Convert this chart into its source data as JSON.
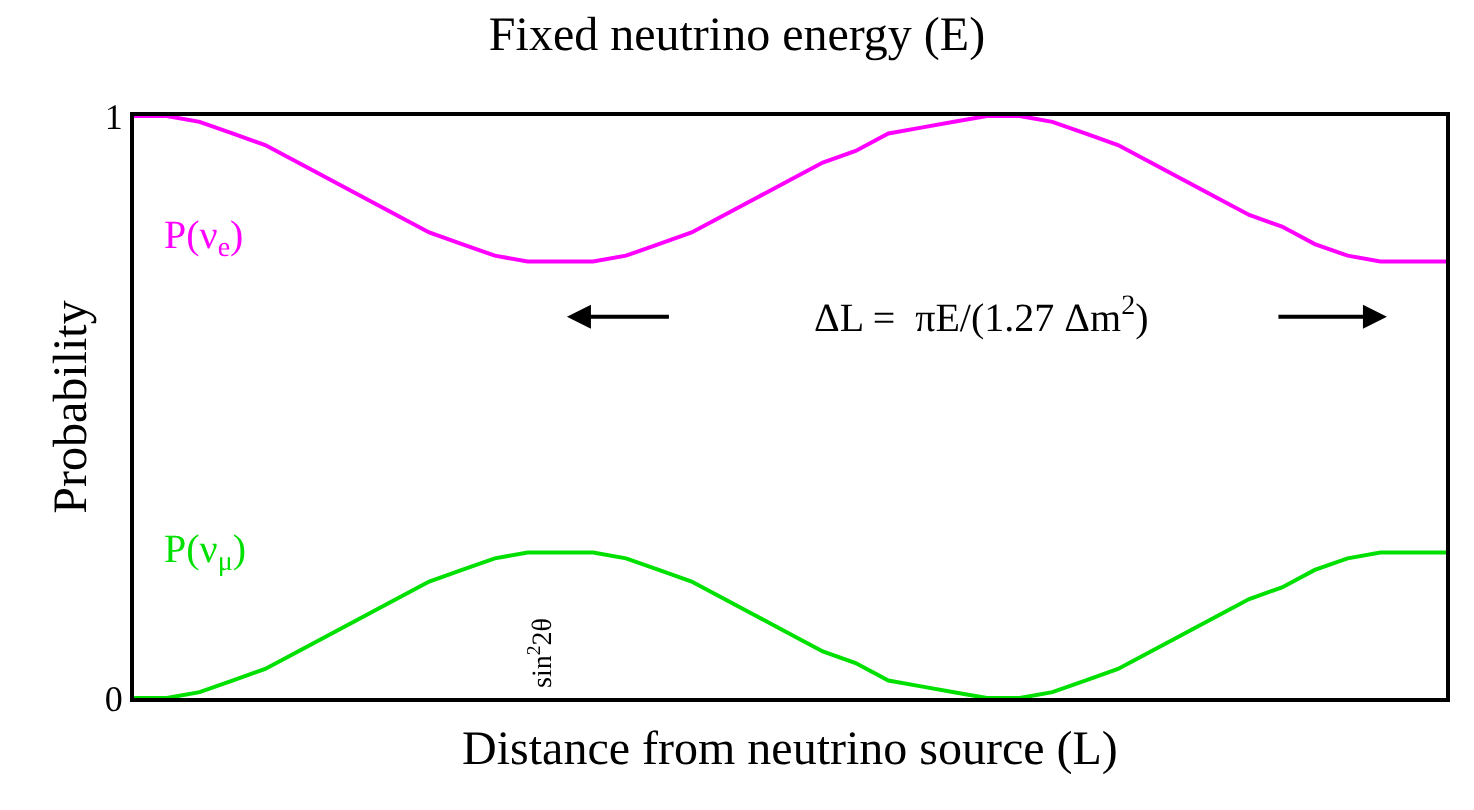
{
  "chart_data": {
    "type": "line",
    "title": "Fixed neutrino energy (E)",
    "xlabel": "Distance from neutrino source (L)",
    "ylabel": "Probability",
    "categories": [
      null,
      null,
      null,
      null,
      null,
      null,
      null,
      null,
      null,
      null,
      null,
      null,
      null,
      null,
      null,
      null,
      null,
      null,
      null,
      null,
      null,
      null,
      null,
      null,
      null,
      null,
      null,
      null,
      null,
      null,
      null,
      null,
      null,
      null,
      null,
      null,
      null,
      null,
      null,
      null,
      null
    ],
    "series": [
      {
        "name": "P(ν$_{e}$)",
        "color": "#ff00ff",
        "values": [
          1,
          1,
          0.99,
          0.97,
          0.95,
          0.92,
          0.89,
          0.86,
          0.83,
          0.8,
          0.78,
          0.76,
          0.75,
          0.75,
          0.75,
          0.76,
          0.78,
          0.8,
          0.83,
          0.86,
          0.89,
          0.92,
          0.94,
          0.97,
          0.98,
          0.99,
          1,
          1,
          0.99,
          0.97,
          0.95,
          0.92,
          0.89,
          0.86,
          0.83,
          0.81,
          0.78,
          0.76,
          0.75,
          0.75,
          0.75
        ]
      },
      {
        "name": "P(ν$_{μ}$)",
        "color": "#00e000",
        "values": [
          0,
          0,
          0.01,
          0.03,
          0.05,
          0.08,
          0.11,
          0.14,
          0.17,
          0.2,
          0.22,
          0.24,
          0.25,
          0.25,
          0.25,
          0.24,
          0.22,
          0.2,
          0.17,
          0.14,
          0.11,
          0.08,
          0.06,
          0.03,
          0.02,
          0.01,
          0,
          0,
          0.01,
          0.03,
          0.05,
          0.08,
          0.11,
          0.14,
          0.17,
          0.19,
          0.22,
          0.24,
          0.25,
          0.25,
          0.25
        ]
      }
    ],
    "annotations": [
      "ΔL =  πE/(1.27 Δm$^{2}$)",
      "sin$^{2}$2θ"
    ],
    "ylim": [
      0,
      1
    ],
    "yticks": [
      0,
      1
    ],
    "legend": false,
    "tick_labels": "y",
    "line_style": "solid",
    "marker": "none"
  }
}
